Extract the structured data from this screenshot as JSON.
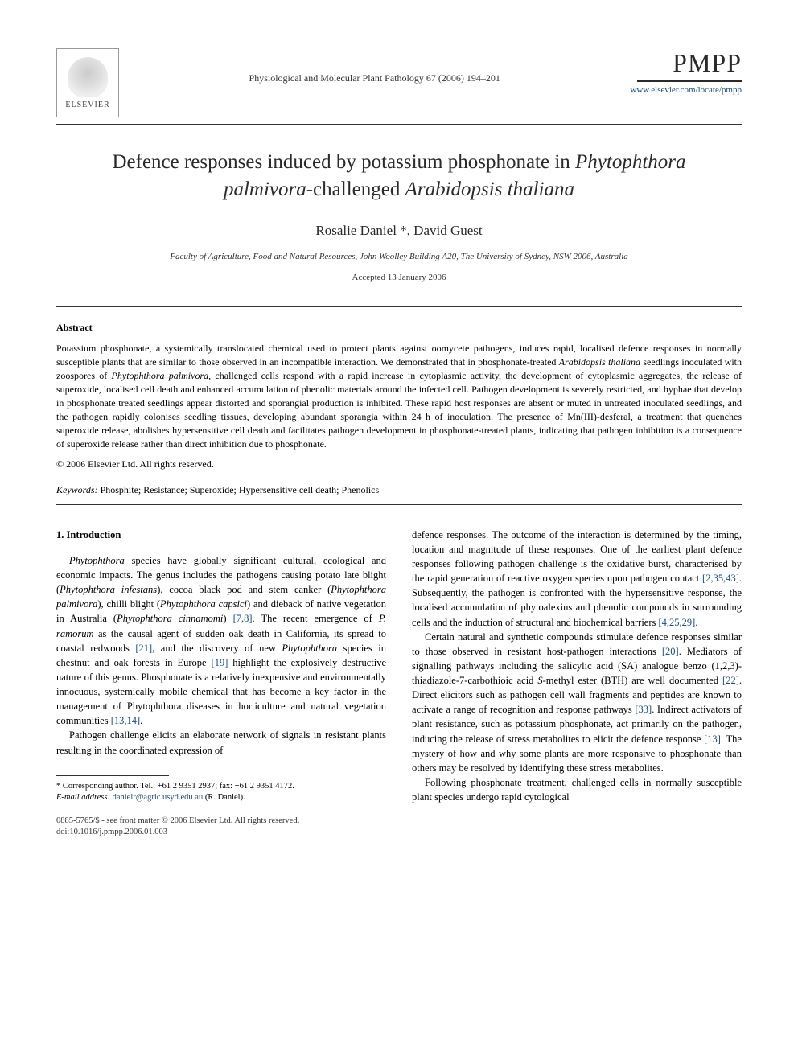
{
  "header": {
    "elsevier_label": "ELSEVIER",
    "journal_ref": "Physiological and Molecular Plant Pathology 67 (2006) 194–201",
    "brand": "PMPP",
    "brand_link": "www.elsevier.com/locate/pmpp"
  },
  "title": {
    "pre": "Defence responses induced by potassium phosphonate in ",
    "italic1": "Phytophthora palmivora",
    "mid": "-challenged ",
    "italic2": "Arabidopsis thaliana"
  },
  "authors": "Rosalie Daniel *, David Guest",
  "affiliation": "Faculty of Agriculture, Food and Natural Resources, John Woolley Building A20, The University of Sydney, NSW 2006, Australia",
  "accepted": "Accepted 13 January 2006",
  "abstract": {
    "heading": "Abstract",
    "body_pre": "Potassium phosphonate, a systemically translocated chemical used to protect plants against oomycete pathogens, induces rapid, localised defence responses in normally susceptible plants that are similar to those observed in an incompatible interaction. We demonstrated that in phosphonate-treated ",
    "a_italic1": "Arabidopsis thaliana",
    "body_mid1": " seedlings inoculated with zoospores of ",
    "a_italic2": "Phytophthora palmivora",
    "body_post": ", challenged cells respond with a rapid increase in cytoplasmic activity, the development of cytoplasmic aggregates, the release of superoxide, localised cell death and enhanced accumulation of phenolic materials around the infected cell. Pathogen development is severely restricted, and hyphae that develop in phosphonate treated seedlings appear distorted and sporangial production is inhibited. These rapid host responses are absent or muted in untreated inoculated seedlings, and the pathogen rapidly colonises seedling tissues, developing abundant sporangia within 24 h of inoculation. The presence of Mn(III)-desferal, a treatment that quenches superoxide release, abolishes hypersensitive cell death and facilitates pathogen development in phosphonate-treated plants, indicating that pathogen inhibition is a consequence of superoxide release rather than direct inhibition due to phosphonate.",
    "copyright": "© 2006 Elsevier Ltd. All rights reserved."
  },
  "keywords": {
    "label": "Keywords:",
    "list": " Phosphite; Resistance; Superoxide; Hypersensitive cell death; Phenolics"
  },
  "intro": {
    "heading": "1. Introduction",
    "p1_a": "Phytophthora",
    "p1_b": " species have globally significant cultural, ecological and economic impacts. The genus includes the pathogens causing potato late blight (",
    "p1_c": "Phytophthora infestans",
    "p1_d": "), cocoa black pod and stem canker (",
    "p1_e": "Phytophthora palmivora",
    "p1_f": "), chilli blight (",
    "p1_g": "Phytophthora capsici",
    "p1_h": ") and dieback of native vegetation in Australia (",
    "p1_i": "Phytophthora cinnamomi",
    "p1_j": ") ",
    "p1_ref1": "[7,8]",
    "p1_k": ". The recent emergence of ",
    "p1_l": "P. ramorum",
    "p1_m": " as the causal agent of sudden oak death in California, its spread to coastal redwoods ",
    "p1_ref2": "[21]",
    "p1_n": ", and the discovery of new ",
    "p1_o": "Phytophthora",
    "p1_p": " species in chestnut and oak forests in Europe ",
    "p1_ref3": "[19]",
    "p1_q": " highlight the explosively destructive nature of this genus. Phosphonate is a relatively inexpensive and environmentally innocuous, systemically mobile chemical that has become a key factor in the management of Phytophthora diseases in horticulture and natural vegetation communities ",
    "p1_ref4": "[13,14]",
    "p1_r": ".",
    "p2": "Pathogen challenge elicits an elaborate network of signals in resistant plants resulting in the coordinated expression of",
    "p3_a": "defence responses. The outcome of the interaction is determined by the timing, location and magnitude of these responses. One of the earliest plant defence responses following pathogen challenge is the oxidative burst, characterised by the rapid generation of reactive oxygen species upon pathogen contact ",
    "p3_ref1": "[2,35,43]",
    "p3_b": ". Subsequently, the pathogen is confronted with the hypersensitive response, the localised accumulation of phytoalexins and phenolic compounds in surrounding cells and the induction of structural and biochemical barriers ",
    "p3_ref2": "[4,25,29]",
    "p3_c": ".",
    "p4_a": "Certain natural and synthetic compounds stimulate defence responses similar to those observed in resistant host-pathogen interactions ",
    "p4_ref1": "[20]",
    "p4_b": ". Mediators of signalling pathways including the salicylic acid (SA) analogue benzo (1,2,3)-thiadiazole-7-carbothioic acid ",
    "p4_c": "S",
    "p4_d": "-methyl ester (BTH) are well documented ",
    "p4_ref2": "[22]",
    "p4_e": ". Direct elicitors such as pathogen cell wall fragments and peptides are known to activate a range of recognition and response pathways ",
    "p4_ref3": "[33]",
    "p4_f": ". Indirect activators of plant resistance, such as potassium phosphonate, act primarily on the pathogen, inducing the release of stress metabolites to elicit the defence response ",
    "p4_ref4": "[13]",
    "p4_g": ". The mystery of how and why some plants are more responsive to phosphonate than others may be resolved by identifying these stress metabolites.",
    "p5": "Following phosphonate treatment, challenged cells in normally susceptible plant species undergo rapid cytological"
  },
  "footnote": {
    "corr": "* Corresponding author. Tel.: +61 2 9351 2937; fax: +61 2 9351 4172.",
    "email_label": "E-mail address:",
    "email": " danielr@agric.usyd.edu.au",
    "email_tail": " (R. Daniel)."
  },
  "bottom": {
    "line1": "0885-5765/$ - see front matter © 2006 Elsevier Ltd. All rights reserved.",
    "line2": "doi:10.1016/j.pmpp.2006.01.003"
  },
  "style": {
    "accent_color": "#1a4b8c",
    "text_color": "#2a2a2a",
    "page_bg": "#ffffff"
  }
}
